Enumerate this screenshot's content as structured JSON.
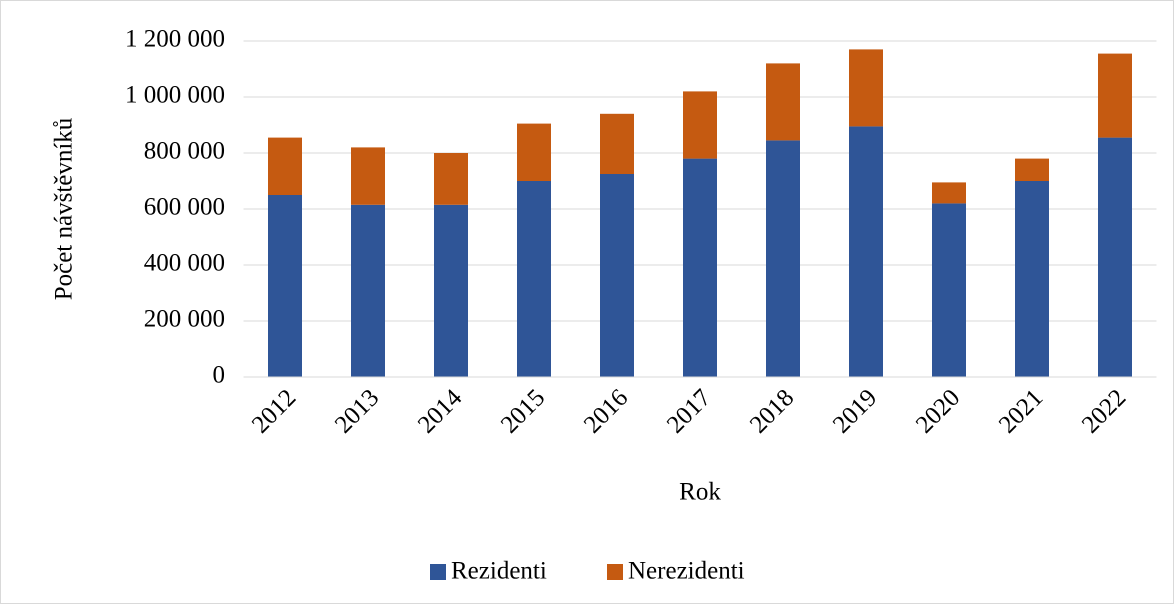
{
  "chart_data": {
    "type": "stacked_bar",
    "ylabel": "Počet návštěvníků",
    "xlabel": "Rok",
    "categories": [
      "2012",
      "2013",
      "2014",
      "2015",
      "2016",
      "2017",
      "2018",
      "2019",
      "2020",
      "2021",
      "2022"
    ],
    "series": [
      {
        "name": "Rezidenti",
        "color": "#2f5597",
        "values": [
          650000,
          615000,
          615000,
          700000,
          725000,
          780000,
          845000,
          895000,
          620000,
          700000,
          855000
        ]
      },
      {
        "name": "Nerezidenti",
        "color": "#c55a11",
        "values": [
          205000,
          205000,
          185000,
          205000,
          215000,
          240000,
          275000,
          275000,
          75000,
          80000,
          300000
        ]
      }
    ],
    "ylim": [
      0,
      1200000
    ],
    "yticks": [
      0,
      {
        "value": 200000,
        "label": "200 000"
      },
      {
        "value": 400000,
        "label": "400 000"
      },
      {
        "value": 600000,
        "label": "600 000"
      },
      {
        "value": 800000,
        "label": "800 000"
      },
      {
        "value": 1000000,
        "label": "1 000 000"
      },
      {
        "value": 1200000,
        "label": "1 200 000"
      }
    ],
    "grid": true,
    "legend": "bottom"
  }
}
